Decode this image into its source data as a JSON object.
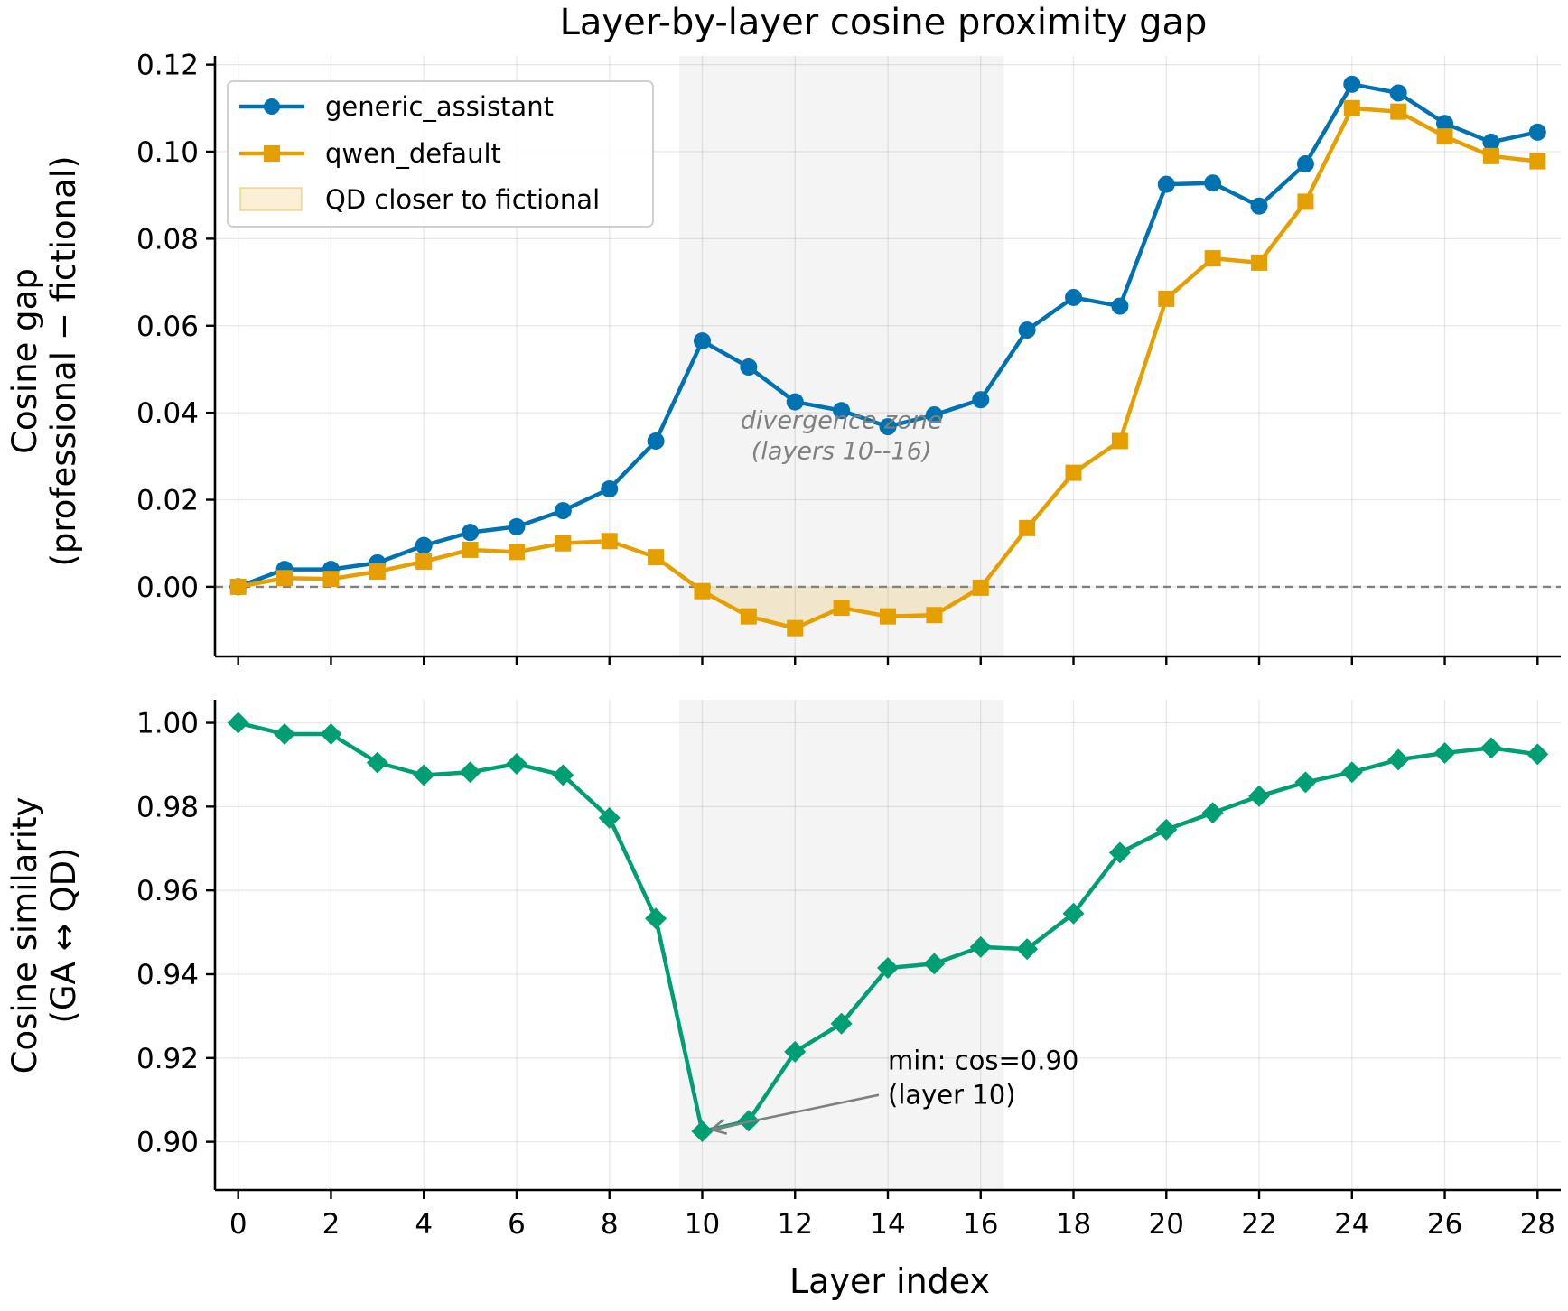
{
  "chart_data": [
    {
      "type": "line",
      "title": "Layer-by-layer cosine proximity gap",
      "ylabel_line1": "Cosine gap",
      "ylabel_line2": "(professional − fictional)",
      "xlabel": "",
      "xlim": [
        -0.5,
        28.5
      ],
      "ylim": [
        -0.016,
        0.122
      ],
      "grid": true,
      "legend_position": "top-left",
      "x_ticks": [
        0,
        2,
        4,
        6,
        8,
        10,
        12,
        14,
        16,
        18,
        20,
        22,
        24,
        26,
        28
      ],
      "y_ticks": [
        0.0,
        0.02,
        0.04,
        0.06,
        0.08,
        0.1,
        0.12
      ],
      "y_tick_labels": [
        "0.00",
        "0.02",
        "0.04",
        "0.06",
        "0.08",
        "0.10",
        "0.12"
      ],
      "x": [
        0,
        1,
        2,
        3,
        4,
        5,
        6,
        7,
        8,
        9,
        10,
        11,
        12,
        13,
        14,
        15,
        16,
        17,
        18,
        19,
        20,
        21,
        22,
        23,
        24,
        25,
        26,
        27,
        28
      ],
      "series": [
        {
          "name": "generic_assistant",
          "marker": "circle",
          "color": "#0072b2",
          "values": [
            0.0,
            0.004,
            0.004,
            0.0055,
            0.0095,
            0.0125,
            0.0138,
            0.0175,
            0.0225,
            0.0335,
            0.0565,
            0.0505,
            0.0425,
            0.0405,
            0.0368,
            0.0395,
            0.043,
            0.059,
            0.0665,
            0.0645,
            0.0925,
            0.0928,
            0.0875,
            0.0972,
            0.1155,
            0.1135,
            0.1065,
            0.1022,
            0.1045
          ]
        },
        {
          "name": "qwen_default",
          "marker": "square",
          "color": "#e69f00",
          "values": [
            0.0,
            0.002,
            0.0018,
            0.0035,
            0.0058,
            0.0085,
            0.008,
            0.01,
            0.0105,
            0.0068,
            -0.001,
            -0.0068,
            -0.0095,
            -0.0048,
            -0.0068,
            -0.0065,
            -0.0002,
            0.0135,
            0.0262,
            0.0335,
            0.0662,
            0.0755,
            0.0745,
            0.0885,
            0.11,
            0.1092,
            0.1035,
            0.099,
            0.0978
          ]
        }
      ],
      "fill_region": {
        "name": "QD closer to fictional",
        "color": "#e69f00",
        "x_range": [
          10,
          16
        ]
      },
      "reference_line": {
        "y": 0.0,
        "style": "dashed",
        "color": "#808080"
      },
      "shaded_span": {
        "x_range": [
          9.5,
          16.5
        ],
        "color": "#e9e9e9"
      },
      "annotation": {
        "line1": "divergence zone",
        "line2": "(layers 10--16)",
        "x": 13.0,
        "y": 0.0385
      }
    },
    {
      "type": "line",
      "title": "",
      "ylabel_line1": "Cosine similarity",
      "ylabel_line2": "(GA ↔ QD)",
      "xlabel": "Layer index",
      "xlim": [
        -0.5,
        28.5
      ],
      "ylim": [
        0.8885,
        1.0055
      ],
      "grid": true,
      "x_ticks": [
        0,
        2,
        4,
        6,
        8,
        10,
        12,
        14,
        16,
        18,
        20,
        22,
        24,
        26,
        28
      ],
      "x_tick_labels": [
        "0",
        "2",
        "4",
        "6",
        "8",
        "10",
        "12",
        "14",
        "16",
        "18",
        "20",
        "22",
        "24",
        "26",
        "28"
      ],
      "y_ticks": [
        0.9,
        0.92,
        0.94,
        0.96,
        0.98,
        1.0
      ],
      "y_tick_labels": [
        "0.90",
        "0.92",
        "0.94",
        "0.96",
        "0.98",
        "1.00"
      ],
      "x": [
        0,
        1,
        2,
        3,
        4,
        5,
        6,
        7,
        8,
        9,
        10,
        11,
        12,
        13,
        14,
        15,
        16,
        17,
        18,
        19,
        20,
        21,
        22,
        23,
        24,
        25,
        26,
        27,
        28
      ],
      "series": [
        {
          "name": "",
          "marker": "diamond",
          "color": "#009e73",
          "values": [
            1.0,
            0.9973,
            0.9973,
            0.9905,
            0.9875,
            0.9882,
            0.9902,
            0.9875,
            0.9773,
            0.9533,
            0.9025,
            0.905,
            0.9215,
            0.9282,
            0.9415,
            0.9425,
            0.9465,
            0.946,
            0.9545,
            0.969,
            0.9745,
            0.9785,
            0.9825,
            0.9858,
            0.9882,
            0.9912,
            0.9928,
            0.994,
            0.9925
          ]
        }
      ],
      "shaded_span": {
        "x_range": [
          9.5,
          16.5
        ],
        "color": "#e9e9e9"
      },
      "annotation": {
        "line1": "min: cos=0.90",
        "line2": "(layer 10)",
        "text_x": 14.0,
        "text_y": 0.9155,
        "arrow_to_x": 10,
        "arrow_to_y": 0.9025
      }
    }
  ]
}
